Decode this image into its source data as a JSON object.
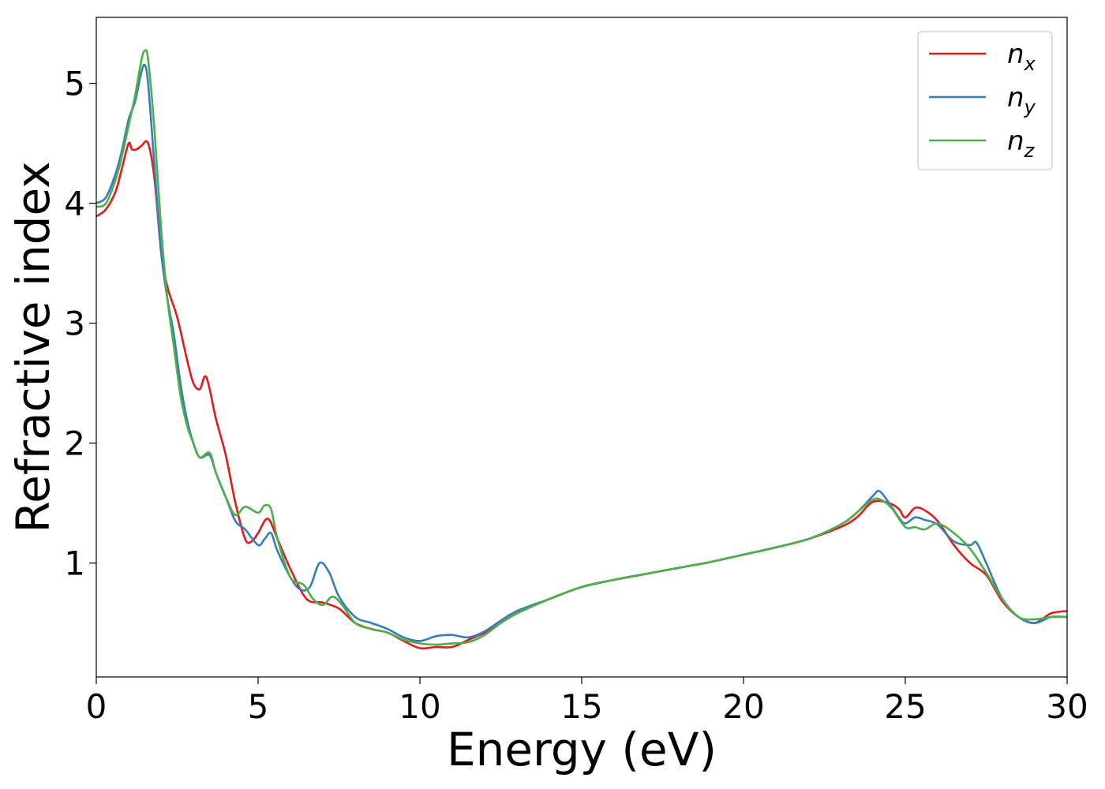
{
  "chart_data": {
    "type": "line",
    "title": "",
    "xlabel": "Energy (eV)",
    "ylabel": "Refractive index",
    "xlim": [
      0,
      30
    ],
    "ylim": [
      0.05,
      5.55
    ],
    "xticks": [
      0,
      5,
      10,
      15,
      20,
      25,
      30
    ],
    "yticks": [
      1,
      2,
      3,
      4,
      5
    ],
    "grid": false,
    "legend_position": "top-right",
    "series": [
      {
        "name": "n_x",
        "label_base": "n",
        "label_sub": "x",
        "color": "#e41a1c",
        "x": [
          0,
          0.3,
          0.6,
          0.8,
          1.0,
          1.1,
          1.25,
          1.4,
          1.6,
          1.8,
          2.0,
          2.2,
          2.5,
          2.8,
          3.0,
          3.2,
          3.4,
          3.7,
          4.0,
          4.3,
          4.6,
          4.8,
          5.0,
          5.3,
          5.6,
          6.0,
          6.5,
          7.0,
          7.5,
          8.0,
          8.5,
          9.0,
          9.5,
          10.0,
          10.5,
          11.0,
          11.5,
          12.0,
          12.5,
          13.0,
          14.0,
          15.0,
          16.0,
          17.0,
          18.0,
          19.0,
          20.0,
          21.0,
          22.0,
          23.0,
          23.5,
          24.0,
          24.5,
          24.8,
          25.0,
          25.3,
          25.6,
          26.0,
          26.5,
          27.0,
          27.5,
          28.0,
          28.5,
          29.0,
          29.5,
          30.0
        ],
        "y": [
          3.89,
          3.95,
          4.1,
          4.3,
          4.5,
          4.45,
          4.45,
          4.48,
          4.5,
          4.2,
          3.6,
          3.3,
          3.05,
          2.7,
          2.5,
          2.45,
          2.55,
          2.2,
          1.9,
          1.5,
          1.2,
          1.18,
          1.25,
          1.37,
          1.2,
          0.95,
          0.7,
          0.67,
          0.62,
          0.5,
          0.45,
          0.42,
          0.35,
          0.29,
          0.3,
          0.3,
          0.36,
          0.42,
          0.5,
          0.58,
          0.7,
          0.8,
          0.86,
          0.91,
          0.96,
          1.01,
          1.07,
          1.13,
          1.2,
          1.3,
          1.38,
          1.51,
          1.5,
          1.45,
          1.38,
          1.46,
          1.44,
          1.35,
          1.15,
          1.0,
          0.9,
          0.68,
          0.55,
          0.5,
          0.58,
          0.6
        ]
      },
      {
        "name": "n_y",
        "label_base": "n",
        "label_sub": "y",
        "color": "#377eb8",
        "x": [
          0,
          0.3,
          0.6,
          0.8,
          1.0,
          1.2,
          1.4,
          1.5,
          1.6,
          1.8,
          2.0,
          2.2,
          2.4,
          2.6,
          2.8,
          3.0,
          3.2,
          3.5,
          3.7,
          4.0,
          4.3,
          4.6,
          5.0,
          5.2,
          5.4,
          5.6,
          6.0,
          6.3,
          6.6,
          6.9,
          7.2,
          7.5,
          8.0,
          8.5,
          9.0,
          9.5,
          10.0,
          10.5,
          11.0,
          11.5,
          12.0,
          12.5,
          13.0,
          14.0,
          15.0,
          16.0,
          17.0,
          18.0,
          19.0,
          20.0,
          21.0,
          22.0,
          23.0,
          23.5,
          24.0,
          24.2,
          24.5,
          24.8,
          25.0,
          25.3,
          25.6,
          26.0,
          26.5,
          27.0,
          27.2,
          27.5,
          28.0,
          28.5,
          29.0,
          29.5,
          30.0
        ],
        "y": [
          4.0,
          4.05,
          4.25,
          4.45,
          4.7,
          4.85,
          5.1,
          5.15,
          5.0,
          4.3,
          3.6,
          3.2,
          2.9,
          2.5,
          2.2,
          2.0,
          1.88,
          1.9,
          1.75,
          1.55,
          1.35,
          1.28,
          1.15,
          1.2,
          1.25,
          1.1,
          0.88,
          0.78,
          0.8,
          1.0,
          0.92,
          0.72,
          0.55,
          0.5,
          0.45,
          0.38,
          0.35,
          0.39,
          0.4,
          0.38,
          0.43,
          0.52,
          0.6,
          0.7,
          0.8,
          0.86,
          0.91,
          0.96,
          1.01,
          1.07,
          1.13,
          1.2,
          1.32,
          1.42,
          1.56,
          1.6,
          1.5,
          1.38,
          1.33,
          1.38,
          1.36,
          1.32,
          1.18,
          1.15,
          1.17,
          1.0,
          0.7,
          0.55,
          0.5,
          0.55,
          0.55
        ]
      },
      {
        "name": "n_z",
        "label_base": "n",
        "label_sub": "z",
        "color": "#4daf4a",
        "x": [
          0,
          0.3,
          0.6,
          0.8,
          1.0,
          1.2,
          1.4,
          1.5,
          1.6,
          1.8,
          2.0,
          2.2,
          2.4,
          2.6,
          2.8,
          3.0,
          3.2,
          3.5,
          3.7,
          4.0,
          4.3,
          4.6,
          5.0,
          5.2,
          5.4,
          5.6,
          6.0,
          6.4,
          6.7,
          7.0,
          7.3,
          7.6,
          8.0,
          8.5,
          9.0,
          9.5,
          10.0,
          10.5,
          11.0,
          11.5,
          12.0,
          12.5,
          13.0,
          14.0,
          15.0,
          16.0,
          17.0,
          18.0,
          19.0,
          20.0,
          21.0,
          22.0,
          23.0,
          23.5,
          24.0,
          24.3,
          24.6,
          25.0,
          25.3,
          25.6,
          26.0,
          26.5,
          27.0,
          27.5,
          28.0,
          28.5,
          29.0,
          29.5,
          30.0
        ],
        "y": [
          3.97,
          4.0,
          4.2,
          4.4,
          4.65,
          4.9,
          5.2,
          5.27,
          5.2,
          4.6,
          3.8,
          3.2,
          2.8,
          2.4,
          2.15,
          2.0,
          1.88,
          1.92,
          1.75,
          1.55,
          1.4,
          1.47,
          1.42,
          1.48,
          1.45,
          1.2,
          0.88,
          0.82,
          0.7,
          0.65,
          0.72,
          0.65,
          0.5,
          0.45,
          0.42,
          0.36,
          0.33,
          0.32,
          0.33,
          0.34,
          0.4,
          0.5,
          0.58,
          0.7,
          0.8,
          0.86,
          0.91,
          0.96,
          1.01,
          1.07,
          1.13,
          1.2,
          1.32,
          1.42,
          1.53,
          1.52,
          1.45,
          1.3,
          1.3,
          1.28,
          1.33,
          1.25,
          1.12,
          0.92,
          0.7,
          0.55,
          0.53,
          0.55,
          0.55
        ]
      }
    ]
  }
}
